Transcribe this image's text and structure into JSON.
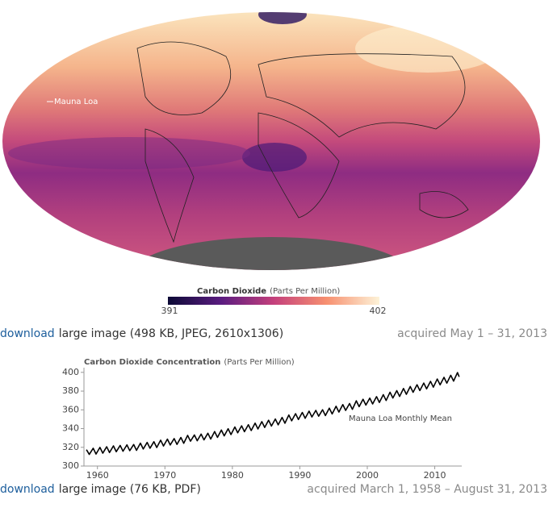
{
  "map": {
    "label": "Mauna Loa"
  },
  "colorbar": {
    "title": "Carbon Dioxide",
    "unit": "(Parts Per Million)",
    "ticks": [
      391,
      402
    ]
  },
  "captions": [
    {
      "link": "download",
      "text": "large image (498 KB, JPEG, 2610x1306)",
      "acquired": "acquired May 1 – 31, 2013"
    },
    {
      "link": "download",
      "text": "large image (76 KB, PDF)",
      "acquired": "acquired March 1, 1958 – August 31, 2013"
    }
  ],
  "chart_data": {
    "type": "line",
    "title": "Carbon Dioxide Concentration",
    "subtitle": "(Parts Per Million)",
    "annotation": "Mauna Loa Monthly Mean",
    "color": "#000000",
    "xlim": [
      1958,
      2014
    ],
    "xticks": [
      1960,
      1970,
      1980,
      1990,
      2000,
      2010
    ],
    "ylim": [
      300,
      405
    ],
    "yticks": [
      300,
      320,
      340,
      360,
      380,
      400
    ],
    "x": [
      1958.37,
      1958.79,
      1959.37,
      1959.79,
      1960.37,
      1960.79,
      1961.37,
      1961.79,
      1962.37,
      1962.79,
      1963.37,
      1963.79,
      1964.37,
      1964.79,
      1965.37,
      1965.79,
      1966.37,
      1966.79,
      1967.37,
      1967.79,
      1968.37,
      1968.79,
      1969.37,
      1969.79,
      1970.37,
      1970.79,
      1971.37,
      1971.79,
      1972.37,
      1972.79,
      1973.37,
      1973.79,
      1974.37,
      1974.79,
      1975.37,
      1975.79,
      1976.37,
      1976.79,
      1977.37,
      1977.79,
      1978.37,
      1978.79,
      1979.37,
      1979.79,
      1980.37,
      1980.79,
      1981.37,
      1981.79,
      1982.37,
      1982.79,
      1983.37,
      1983.79,
      1984.37,
      1984.79,
      1985.37,
      1985.79,
      1986.37,
      1986.79,
      1987.37,
      1987.79,
      1988.37,
      1988.79,
      1989.37,
      1989.79,
      1990.37,
      1990.79,
      1991.37,
      1991.79,
      1992.37,
      1992.79,
      1993.37,
      1993.79,
      1994.37,
      1994.79,
      1995.37,
      1995.79,
      1996.37,
      1996.79,
      1997.37,
      1997.79,
      1998.37,
      1998.79,
      1999.37,
      1999.79,
      2000.37,
      2000.79,
      2001.37,
      2001.79,
      2002.37,
      2002.79,
      2003.37,
      2003.79,
      2004.37,
      2004.79,
      2005.37,
      2005.79,
      2006.37,
      2006.79,
      2007.37,
      2007.79,
      2008.37,
      2008.79,
      2009.37,
      2009.79,
      2010.37,
      2010.79,
      2011.37,
      2011.79,
      2012.37,
      2012.79,
      2013.37,
      2013.62
    ],
    "values": [
      317.5,
      312.4,
      319.0,
      312.8,
      319.9,
      313.7,
      320.6,
      314.4,
      321.5,
      315.3,
      322.0,
      315.8,
      322.6,
      316.4,
      323.0,
      316.8,
      324.4,
      318.2,
      325.2,
      319.0,
      326.0,
      319.8,
      327.6,
      321.4,
      328.7,
      322.5,
      329.3,
      323.1,
      330.5,
      324.3,
      332.7,
      326.5,
      333.2,
      327.0,
      334.1,
      327.9,
      335.0,
      328.8,
      336.8,
      330.6,
      338.4,
      332.2,
      339.8,
      333.6,
      341.7,
      335.5,
      342.9,
      336.7,
      344.1,
      337.9,
      345.8,
      339.6,
      347.4,
      341.2,
      348.9,
      342.7,
      350.2,
      344.0,
      351.9,
      345.7,
      354.5,
      348.3,
      355.9,
      349.7,
      357.2,
      351.0,
      358.6,
      352.4,
      359.4,
      353.2,
      360.1,
      353.9,
      361.8,
      355.6,
      363.8,
      357.6,
      365.6,
      359.4,
      366.7,
      360.5,
      369.6,
      363.4,
      371.3,
      365.1,
      372.5,
      366.3,
      374.1,
      367.9,
      376.2,
      370.0,
      378.8,
      372.6,
      380.5,
      374.3,
      382.8,
      376.6,
      384.9,
      378.7,
      386.8,
      380.6,
      388.6,
      382.4,
      390.4,
      384.2,
      392.9,
      386.7,
      394.7,
      388.5,
      396.9,
      390.7,
      399.8,
      395.2
    ]
  }
}
